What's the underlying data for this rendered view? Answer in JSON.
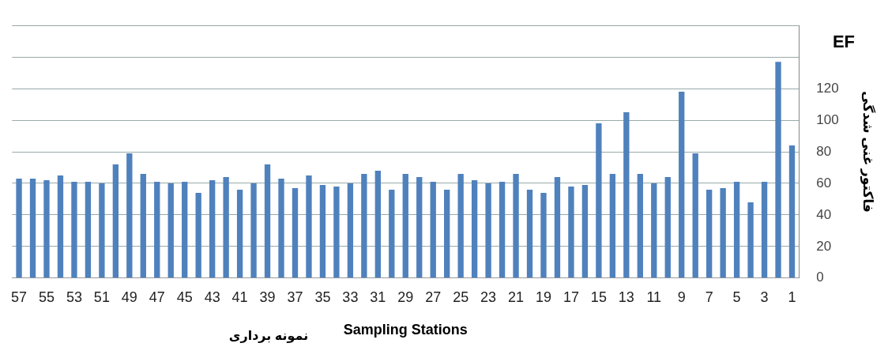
{
  "chart_data": {
    "type": "bar",
    "xlabel": "Sampling Stations",
    "ylabel": "فاکتور غنی شدگی",
    "annotations": [
      "EF",
      "نمونه برداری"
    ],
    "categories": [
      "57",
      null,
      "55",
      null,
      "53",
      null,
      "51",
      null,
      "49",
      null,
      "47",
      null,
      "45",
      null,
      "43",
      null,
      "41",
      null,
      "39",
      null,
      "37",
      null,
      "35",
      null,
      "33",
      null,
      "31",
      null,
      "29",
      null,
      "27",
      null,
      "25",
      null,
      "23",
      null,
      "21",
      null,
      "19",
      null,
      "17",
      null,
      "15",
      null,
      "13",
      null,
      "11",
      null,
      "9",
      null,
      "7",
      null,
      "5",
      null,
      "3",
      null,
      "1"
    ],
    "values": [
      63,
      63,
      62,
      65,
      61,
      61,
      60,
      72,
      79,
      66,
      61,
      60,
      61,
      54,
      62,
      64,
      56,
      60,
      72,
      63,
      57,
      65,
      59,
      58,
      60,
      66,
      68,
      56,
      66,
      64,
      61,
      56,
      66,
      62,
      60,
      61,
      66,
      56,
      54,
      64,
      58,
      59,
      98,
      66,
      105,
      66,
      60,
      64,
      118,
      79,
      56,
      57,
      61,
      48,
      61,
      137,
      84
    ],
    "color": "#4f81bd",
    "ylim": [
      0,
      160
    ],
    "yticks": [
      0,
      20,
      40,
      60,
      80,
      100,
      120,
      {
        "value": 140,
        "label": null
      },
      {
        "value": 160,
        "label": null
      }
    ],
    "grid": "y",
    "legend": false
  }
}
